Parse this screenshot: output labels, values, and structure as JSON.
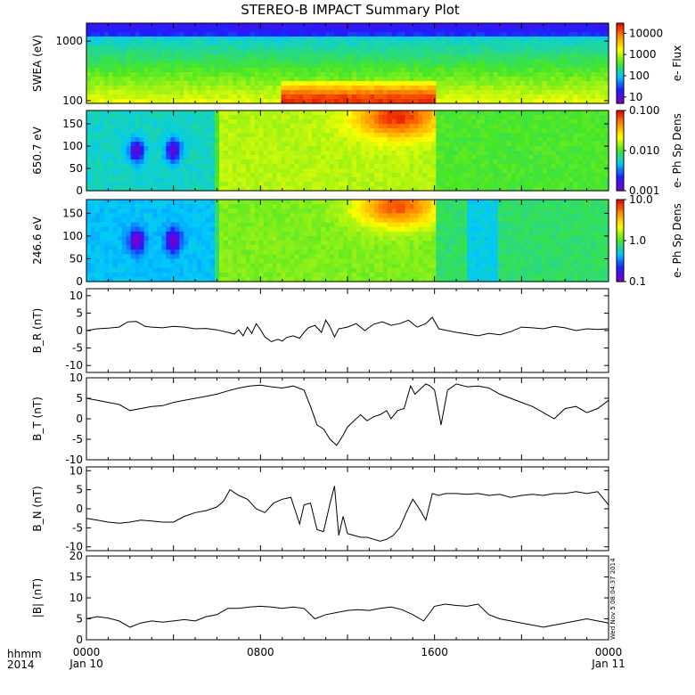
{
  "title": "STEREO-B IMPACT Summary Plot",
  "time_axis": {
    "label_rows": [
      "hhmm",
      "2014"
    ],
    "ticks": [
      {
        "hour": 0,
        "top": "0000",
        "bottom": "Jan 10"
      },
      {
        "hour": 8,
        "top": "0800",
        "bottom": ""
      },
      {
        "hour": 16,
        "top": "1600",
        "bottom": ""
      },
      {
        "hour": 24,
        "top": "0000",
        "bottom": "Jan 11"
      }
    ],
    "range_hours": [
      0,
      24
    ]
  },
  "timestamp": "Wed Nov 5 08:04:37 2014",
  "colors": {
    "spectrogram_palette": [
      "#7a00c8",
      "#1e1eff",
      "#00c8ff",
      "#46e628",
      "#ffff00",
      "#ff8c00",
      "#e60000"
    ],
    "trace": "#000000",
    "frame": "#000000"
  },
  "chart_data": [
    {
      "type": "heatmap",
      "ylabel": "SWEA (eV)",
      "yscale": "log",
      "ylim": [
        90,
        2000
      ],
      "y_ticks": [
        "1000",
        "100"
      ],
      "y_tick_values": [
        1000,
        100
      ],
      "colorbar": {
        "label": "e- Flux",
        "scale": "log",
        "range": [
          5,
          30000
        ],
        "ticks": [
          "10000",
          "1000",
          "100",
          "10"
        ],
        "tick_values": [
          10000,
          1000,
          100,
          10
        ]
      },
      "features": [
        {
          "name": "high flux band",
          "x_range_hours": [
            9,
            16
          ],
          "y_range": [
            90,
            200
          ],
          "peak": 20000
        },
        {
          "name": "low flux top",
          "y_range": [
            1500,
            2000
          ],
          "level": 8
        }
      ]
    },
    {
      "type": "heatmap",
      "ylabel": "650.7 eV",
      "ylim": [
        0,
        180
      ],
      "y_ticks": [
        "150",
        "100",
        "50",
        "0"
      ],
      "y_tick_values": [
        150,
        100,
        50,
        0
      ],
      "colorbar": {
        "label": "e- Ph Sp Dens",
        "scale": "log",
        "range": [
          0.001,
          0.1
        ],
        "ticks": [
          "0.100",
          "0.010",
          "0.001"
        ],
        "tick_values": [
          0.1,
          0.01,
          0.001
        ]
      },
      "features": [
        {
          "name": "hot region",
          "x_range_hours": [
            13,
            16
          ],
          "y_range": [
            110,
            180
          ],
          "peak": 0.1
        },
        {
          "name": "low spots",
          "x_hours": [
            2,
            3.8
          ],
          "y": 90,
          "level": 0.0015
        }
      ]
    },
    {
      "type": "heatmap",
      "ylabel": "246.6 eV",
      "ylim": [
        0,
        180
      ],
      "y_ticks": [
        "150",
        "100",
        "50",
        "0"
      ],
      "y_tick_values": [
        150,
        100,
        50,
        0
      ],
      "colorbar": {
        "label": "e- Ph Sp Dens",
        "scale": "log",
        "range": [
          0.1,
          10
        ],
        "ticks": [
          "10.0",
          "1.0",
          "0.1"
        ],
        "tick_values": [
          10,
          1,
          0.1
        ]
      },
      "features": [
        {
          "name": "hot region",
          "x_range_hours": [
            13,
            16
          ],
          "y_range": [
            130,
            180
          ],
          "peak": 8
        },
        {
          "name": "low spots",
          "x_hours": [
            2,
            3.8
          ],
          "y": 90,
          "level": 0.12
        }
      ]
    },
    {
      "type": "line",
      "ylabel": "B_R (nT)",
      "ylim": [
        -12,
        12
      ],
      "y_ticks": [
        "10",
        "5",
        "0",
        "-5",
        "-10"
      ],
      "y_tick_values": [
        10,
        5,
        0,
        -5,
        -10
      ],
      "x": [
        0,
        0.5,
        1,
        1.5,
        1.9,
        2.3,
        2.7,
        3,
        3.5,
        4,
        4.5,
        5,
        5.5,
        6,
        6.5,
        6.8,
        7,
        7.2,
        7.4,
        7.6,
        7.8,
        8,
        8.2,
        8.5,
        8.8,
        9,
        9.2,
        9.5,
        9.8,
        10,
        10.2,
        10.5,
        10.8,
        11,
        11.2,
        11.4,
        11.6,
        12,
        12.4,
        12.8,
        13.2,
        13.6,
        14,
        14.4,
        14.8,
        15.2,
        15.6,
        15.9,
        16.2,
        16.6,
        17,
        17.5,
        18,
        18.5,
        19,
        19.5,
        20,
        20.5,
        21,
        21.5,
        22,
        22.5,
        23,
        23.5,
        24
      ],
      "y": [
        0,
        0.5,
        0.7,
        1,
        2.5,
        2.6,
        1.2,
        1,
        0.8,
        1.2,
        1,
        0.5,
        0.6,
        0.2,
        -0.5,
        -1,
        0.2,
        -1.5,
        1,
        -0.8,
        2,
        0.3,
        -1.8,
        -3.2,
        -2.5,
        -3,
        -2,
        -1.5,
        -2.2,
        -0.5,
        0.8,
        1.5,
        -0.5,
        3,
        1,
        -1.8,
        0.5,
        1,
        2,
        0,
        1.8,
        2.5,
        1.5,
        2,
        3,
        1,
        2,
        3.8,
        0.5,
        0,
        -0.5,
        -1,
        -1.5,
        -0.8,
        -1.2,
        -0.3,
        1,
        0.8,
        0.5,
        1.2,
        0.8,
        0,
        0.5,
        0.3,
        0.5
      ]
    },
    {
      "type": "line",
      "ylabel": "B_T (nT)",
      "ylim": [
        -10,
        10
      ],
      "y_ticks": [
        "10",
        "5",
        "0",
        "-5",
        "-10"
      ],
      "y_tick_values": [
        10,
        5,
        0,
        -5,
        -10
      ],
      "x": [
        0,
        0.5,
        1,
        1.5,
        2,
        2.5,
        3,
        3.5,
        4,
        4.5,
        5,
        5.5,
        6,
        6.5,
        7,
        7.5,
        8,
        8.5,
        9,
        9.5,
        10,
        10.3,
        10.6,
        10.9,
        11.2,
        11.5,
        11.8,
        12,
        12.3,
        12.6,
        12.9,
        13.2,
        13.5,
        13.8,
        14,
        14.3,
        14.6,
        14.9,
        15.1,
        15.4,
        15.6,
        15.8,
        16,
        16.3,
        16.6,
        17,
        17.5,
        18,
        18.5,
        19,
        19.5,
        20,
        20.5,
        21,
        21.5,
        22,
        22.5,
        23,
        23.5,
        24
      ],
      "y": [
        5,
        4.5,
        4,
        3.5,
        2,
        2.5,
        3,
        3.2,
        4,
        4.5,
        5,
        5.5,
        6,
        6.8,
        7.5,
        8,
        8.2,
        7.8,
        7.5,
        8,
        7,
        3,
        -1.5,
        -2.5,
        -5,
        -6.5,
        -4,
        -2,
        -0.5,
        1,
        -0.5,
        0.5,
        1,
        2,
        0,
        2,
        2.5,
        8,
        6,
        7.5,
        8.5,
        8,
        7,
        -1.5,
        7,
        8.5,
        7.8,
        8,
        7.5,
        6,
        5,
        4,
        3,
        1.5,
        0,
        2.5,
        3,
        1.5,
        2.5,
        4.5
      ]
    },
    {
      "type": "line",
      "ylabel": "B_N (nT)",
      "ylim": [
        -11,
        11
      ],
      "y_ticks": [
        "10",
        "5",
        "0",
        "-5",
        "-10"
      ],
      "y_tick_values": [
        10,
        5,
        0,
        -5,
        -10
      ],
      "x": [
        0,
        0.5,
        1,
        1.5,
        2,
        2.5,
        3,
        3.5,
        4,
        4.5,
        5,
        5.5,
        6,
        6.3,
        6.6,
        7,
        7.4,
        7.8,
        8.2,
        8.6,
        9,
        9.4,
        9.8,
        10,
        10.3,
        10.6,
        10.9,
        11.2,
        11.4,
        11.6,
        11.8,
        12,
        12.3,
        12.6,
        12.9,
        13.2,
        13.5,
        13.8,
        14.1,
        14.4,
        14.7,
        15,
        15.3,
        15.6,
        15.9,
        16.2,
        16.5,
        17,
        17.5,
        18,
        18.5,
        19,
        19.5,
        20,
        20.5,
        21,
        21.5,
        22,
        22.5,
        23,
        23.5,
        24
      ],
      "y": [
        -2.5,
        -3,
        -3.5,
        -3.8,
        -3.5,
        -3,
        -3.2,
        -3.5,
        -3.5,
        -2,
        -1,
        -0.5,
        0.5,
        2,
        5,
        3.5,
        2.5,
        0,
        -1,
        1.5,
        2.5,
        3,
        -4,
        1,
        1.5,
        -5.5,
        -6,
        1.5,
        6,
        -7,
        -2,
        -6.5,
        -7,
        -7.5,
        -7.5,
        -8,
        -8.5,
        -8,
        -7,
        -5,
        -1,
        2.5,
        0,
        -3,
        4,
        3.5,
        4,
        4,
        3.8,
        4,
        3.5,
        3.8,
        3,
        3.5,
        3.8,
        3.5,
        4,
        4,
        4.5,
        4,
        4.5,
        1
      ]
    },
    {
      "type": "line",
      "ylabel": "|B| (nT)",
      "ylim": [
        0,
        20
      ],
      "y_ticks": [
        "20",
        "15",
        "10",
        "5",
        "0"
      ],
      "y_tick_values": [
        20,
        15,
        10,
        5,
        0
      ],
      "x": [
        0,
        0.5,
        1,
        1.5,
        2,
        2.5,
        3,
        3.5,
        4,
        4.5,
        5,
        5.5,
        6,
        6.5,
        7,
        7.5,
        8,
        8.5,
        9,
        9.5,
        10,
        10.5,
        11,
        11.5,
        12,
        12.5,
        13,
        13.5,
        14,
        14.5,
        15,
        15.5,
        16,
        16.5,
        17,
        17.5,
        18,
        18.5,
        19,
        19.5,
        20,
        20.5,
        21,
        21.5,
        22,
        22.5,
        23,
        23.5,
        24
      ],
      "y": [
        5,
        5.5,
        5.2,
        4.5,
        3,
        4,
        4.5,
        4.2,
        4.5,
        4.8,
        4.5,
        5.5,
        6,
        7.5,
        7.5,
        7.8,
        8,
        7.8,
        7.5,
        7.8,
        7.5,
        5,
        6,
        6.5,
        7,
        7.2,
        7,
        7.5,
        7.8,
        7.2,
        6,
        4.5,
        8,
        8.5,
        8.2,
        8,
        8.5,
        6,
        5,
        4.5,
        4,
        3.5,
        3,
        3.5,
        4,
        4.5,
        5,
        4.5,
        4
      ]
    }
  ]
}
